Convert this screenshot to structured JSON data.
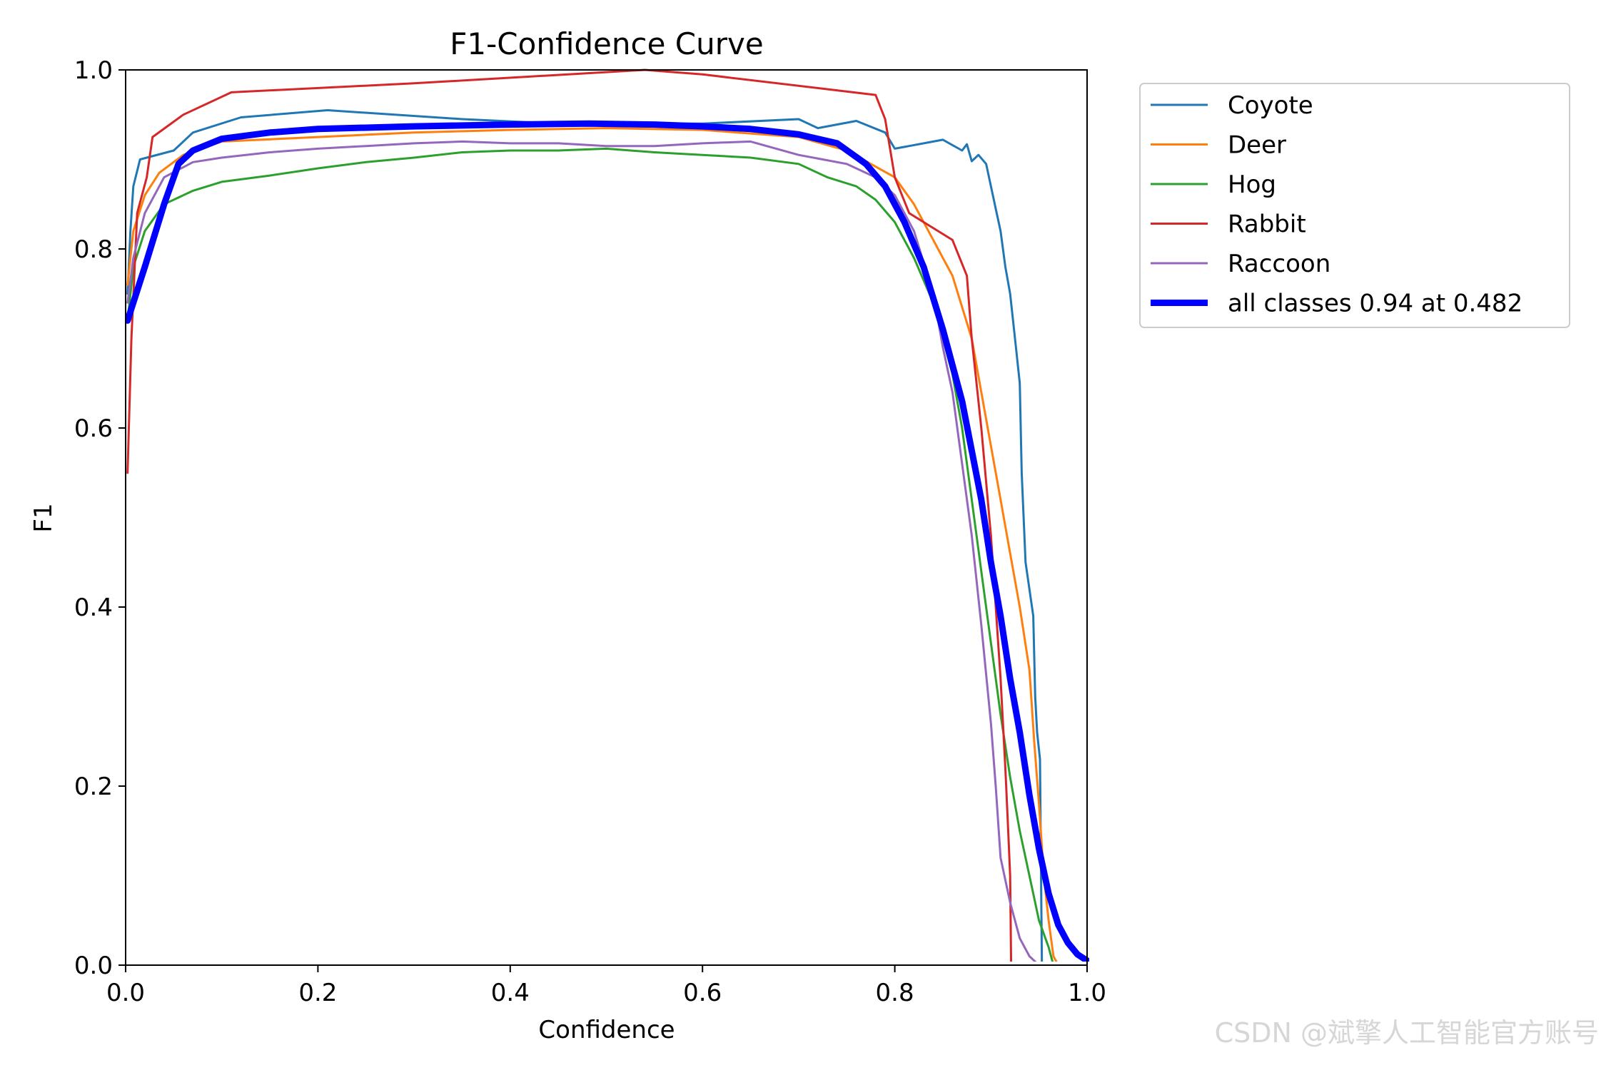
{
  "chart_data": {
    "type": "line",
    "title": "F1-Confidence Curve",
    "xlabel": "Confidence",
    "ylabel": "F1",
    "xlim": [
      0,
      1
    ],
    "ylim": [
      0,
      1
    ],
    "xticks": [
      "0.0",
      "0.2",
      "0.4",
      "0.6",
      "0.8",
      "1.0"
    ],
    "yticks": [
      "0.0",
      "0.2",
      "0.4",
      "0.6",
      "0.8",
      "1.0"
    ],
    "legend_position": "outside-top-right",
    "series": [
      {
        "name": "Coyote",
        "color": "#1f77b4",
        "width": "thin",
        "points": [
          [
            0.002,
            0.75
          ],
          [
            0.005,
            0.82
          ],
          [
            0.008,
            0.87
          ],
          [
            0.015,
            0.9
          ],
          [
            0.05,
            0.91
          ],
          [
            0.07,
            0.93
          ],
          [
            0.12,
            0.947
          ],
          [
            0.21,
            0.955
          ],
          [
            0.35,
            0.945
          ],
          [
            0.45,
            0.94
          ],
          [
            0.6,
            0.94
          ],
          [
            0.7,
            0.945
          ],
          [
            0.72,
            0.935
          ],
          [
            0.76,
            0.943
          ],
          [
            0.79,
            0.93
          ],
          [
            0.8,
            0.912
          ],
          [
            0.85,
            0.922
          ],
          [
            0.87,
            0.91
          ],
          [
            0.875,
            0.917
          ],
          [
            0.88,
            0.898
          ],
          [
            0.887,
            0.905
          ],
          [
            0.895,
            0.895
          ],
          [
            0.9,
            0.87
          ],
          [
            0.905,
            0.845
          ],
          [
            0.91,
            0.82
          ],
          [
            0.915,
            0.78
          ],
          [
            0.92,
            0.75
          ],
          [
            0.925,
            0.7
          ],
          [
            0.93,
            0.65
          ],
          [
            0.932,
            0.55
          ],
          [
            0.934,
            0.5
          ],
          [
            0.936,
            0.45
          ],
          [
            0.94,
            0.42
          ],
          [
            0.944,
            0.39
          ],
          [
            0.946,
            0.3
          ],
          [
            0.948,
            0.26
          ],
          [
            0.951,
            0.23
          ],
          [
            0.953,
            0.0
          ]
        ]
      },
      {
        "name": "Deer",
        "color": "#ff7f0e",
        "width": "thin",
        "points": [
          [
            0.002,
            0.76
          ],
          [
            0.008,
            0.82
          ],
          [
            0.02,
            0.86
          ],
          [
            0.035,
            0.885
          ],
          [
            0.06,
            0.905
          ],
          [
            0.1,
            0.92
          ],
          [
            0.2,
            0.925
          ],
          [
            0.3,
            0.93
          ],
          [
            0.4,
            0.933
          ],
          [
            0.5,
            0.935
          ],
          [
            0.6,
            0.933
          ],
          [
            0.7,
            0.925
          ],
          [
            0.75,
            0.91
          ],
          [
            0.8,
            0.88
          ],
          [
            0.82,
            0.85
          ],
          [
            0.84,
            0.81
          ],
          [
            0.86,
            0.77
          ],
          [
            0.88,
            0.7
          ],
          [
            0.89,
            0.64
          ],
          [
            0.9,
            0.58
          ],
          [
            0.91,
            0.52
          ],
          [
            0.92,
            0.46
          ],
          [
            0.93,
            0.4
          ],
          [
            0.94,
            0.33
          ],
          [
            0.945,
            0.25
          ],
          [
            0.95,
            0.18
          ],
          [
            0.955,
            0.1
          ],
          [
            0.96,
            0.05
          ],
          [
            0.965,
            0.01
          ],
          [
            0.97,
            0.0
          ]
        ]
      },
      {
        "name": "Hog",
        "color": "#2ca02c",
        "width": "thin",
        "points": [
          [
            0.002,
            0.72
          ],
          [
            0.008,
            0.78
          ],
          [
            0.02,
            0.82
          ],
          [
            0.04,
            0.85
          ],
          [
            0.07,
            0.865
          ],
          [
            0.1,
            0.875
          ],
          [
            0.15,
            0.882
          ],
          [
            0.2,
            0.89
          ],
          [
            0.25,
            0.897
          ],
          [
            0.3,
            0.902
          ],
          [
            0.35,
            0.908
          ],
          [
            0.4,
            0.91
          ],
          [
            0.45,
            0.91
          ],
          [
            0.5,
            0.912
          ],
          [
            0.55,
            0.908
          ],
          [
            0.6,
            0.905
          ],
          [
            0.65,
            0.902
          ],
          [
            0.7,
            0.895
          ],
          [
            0.73,
            0.88
          ],
          [
            0.76,
            0.87
          ],
          [
            0.78,
            0.855
          ],
          [
            0.8,
            0.83
          ],
          [
            0.82,
            0.79
          ],
          [
            0.84,
            0.74
          ],
          [
            0.86,
            0.66
          ],
          [
            0.87,
            0.6
          ],
          [
            0.88,
            0.52
          ],
          [
            0.89,
            0.44
          ],
          [
            0.9,
            0.36
          ],
          [
            0.91,
            0.28
          ],
          [
            0.92,
            0.21
          ],
          [
            0.93,
            0.15
          ],
          [
            0.94,
            0.1
          ],
          [
            0.95,
            0.05
          ],
          [
            0.96,
            0.02
          ],
          [
            0.965,
            0.0
          ]
        ]
      },
      {
        "name": "Rabbit",
        "color": "#d62728",
        "width": "thin",
        "points": [
          [
            0.002,
            0.55
          ],
          [
            0.006,
            0.7
          ],
          [
            0.012,
            0.84
          ],
          [
            0.022,
            0.88
          ],
          [
            0.028,
            0.925
          ],
          [
            0.06,
            0.95
          ],
          [
            0.11,
            0.975
          ],
          [
            0.3,
            0.985
          ],
          [
            0.54,
            1.0
          ],
          [
            0.6,
            0.995
          ],
          [
            0.78,
            0.972
          ],
          [
            0.79,
            0.945
          ],
          [
            0.8,
            0.88
          ],
          [
            0.815,
            0.84
          ],
          [
            0.83,
            0.83
          ],
          [
            0.86,
            0.81
          ],
          [
            0.875,
            0.77
          ],
          [
            0.88,
            0.7
          ],
          [
            0.89,
            0.6
          ],
          [
            0.9,
            0.48
          ],
          [
            0.91,
            0.32
          ],
          [
            0.915,
            0.22
          ],
          [
            0.918,
            0.15
          ],
          [
            0.92,
            0.1
          ],
          [
            0.921,
            0.0
          ]
        ]
      },
      {
        "name": "Raccoon",
        "color": "#9467bd",
        "width": "thin",
        "points": [
          [
            0.002,
            0.74
          ],
          [
            0.008,
            0.79
          ],
          [
            0.02,
            0.84
          ],
          [
            0.04,
            0.88
          ],
          [
            0.07,
            0.897
          ],
          [
            0.1,
            0.902
          ],
          [
            0.15,
            0.908
          ],
          [
            0.2,
            0.912
          ],
          [
            0.25,
            0.915
          ],
          [
            0.3,
            0.918
          ],
          [
            0.35,
            0.92
          ],
          [
            0.4,
            0.918
          ],
          [
            0.45,
            0.918
          ],
          [
            0.5,
            0.915
          ],
          [
            0.55,
            0.915
          ],
          [
            0.6,
            0.918
          ],
          [
            0.65,
            0.92
          ],
          [
            0.7,
            0.905
          ],
          [
            0.75,
            0.895
          ],
          [
            0.78,
            0.88
          ],
          [
            0.8,
            0.86
          ],
          [
            0.82,
            0.82
          ],
          [
            0.84,
            0.75
          ],
          [
            0.85,
            0.69
          ],
          [
            0.86,
            0.64
          ],
          [
            0.87,
            0.56
          ],
          [
            0.88,
            0.48
          ],
          [
            0.89,
            0.38
          ],
          [
            0.9,
            0.27
          ],
          [
            0.905,
            0.2
          ],
          [
            0.91,
            0.12
          ],
          [
            0.92,
            0.07
          ],
          [
            0.93,
            0.03
          ],
          [
            0.94,
            0.01
          ],
          [
            0.95,
            0.0
          ]
        ]
      },
      {
        "name": "all classes 0.94 at 0.482",
        "color": "#0000ff",
        "width": "thick",
        "points": [
          [
            0.002,
            0.72
          ],
          [
            0.02,
            0.78
          ],
          [
            0.04,
            0.85
          ],
          [
            0.055,
            0.895
          ],
          [
            0.07,
            0.91
          ],
          [
            0.1,
            0.923
          ],
          [
            0.15,
            0.93
          ],
          [
            0.2,
            0.934
          ],
          [
            0.3,
            0.937
          ],
          [
            0.4,
            0.939
          ],
          [
            0.482,
            0.94
          ],
          [
            0.55,
            0.939
          ],
          [
            0.6,
            0.937
          ],
          [
            0.65,
            0.934
          ],
          [
            0.7,
            0.928
          ],
          [
            0.74,
            0.918
          ],
          [
            0.77,
            0.895
          ],
          [
            0.79,
            0.87
          ],
          [
            0.81,
            0.83
          ],
          [
            0.83,
            0.78
          ],
          [
            0.85,
            0.71
          ],
          [
            0.87,
            0.63
          ],
          [
            0.89,
            0.52
          ],
          [
            0.9,
            0.45
          ],
          [
            0.91,
            0.39
          ],
          [
            0.92,
            0.32
          ],
          [
            0.93,
            0.26
          ],
          [
            0.94,
            0.19
          ],
          [
            0.95,
            0.13
          ],
          [
            0.96,
            0.08
          ],
          [
            0.97,
            0.045
          ],
          [
            0.98,
            0.025
          ],
          [
            0.99,
            0.012
          ],
          [
            1.0,
            0.005
          ]
        ]
      }
    ]
  },
  "watermark": "CSDN @斌擎人工智能官方账号"
}
